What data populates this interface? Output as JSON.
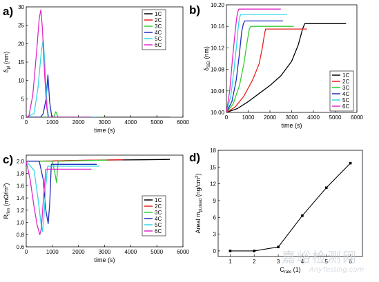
{
  "chart_data": [
    {
      "panel": "a)",
      "type": "line",
      "xlabel": "time (s)",
      "ylabel": "δpl (nm)",
      "ylabel_main": "δ",
      "ylabel_sub": "pl",
      "ylabel_rest": " (nm)",
      "xlim": [
        0,
        6000
      ],
      "ylim": [
        0,
        30
      ],
      "xticks": [
        0,
        1000,
        2000,
        3000,
        4000,
        5000,
        6000
      ],
      "yticks": [
        0,
        5,
        10,
        15,
        20,
        25,
        30
      ],
      "ytick_decimals": 0,
      "legend_placement": "top-right",
      "series": [
        {
          "name": "1C",
          "points": [
            [
              0,
              0
            ],
            [
              800,
              0
            ],
            [
              1200,
              0
            ],
            [
              3000,
              0
            ],
            [
              5500,
              0
            ]
          ]
        },
        {
          "name": "2C",
          "points": [
            [
              0,
              0
            ],
            [
              1200,
              0
            ],
            [
              1700,
              0
            ],
            [
              3000,
              0
            ]
          ]
        },
        {
          "name": "3C",
          "points": [
            [
              0,
              0
            ],
            [
              1050,
              0
            ],
            [
              1130,
              1.5
            ],
            [
              1220,
              0
            ],
            [
              3000,
              0
            ]
          ]
        },
        {
          "name": "4C",
          "points": [
            [
              0,
              0
            ],
            [
              550,
              0
            ],
            [
              650,
              1
            ],
            [
              760,
              5
            ],
            [
              830,
              11.5
            ],
            [
              900,
              4
            ],
            [
              980,
              0
            ],
            [
              2000,
              0
            ]
          ]
        },
        {
          "name": "5C",
          "points": [
            [
              0,
              0
            ],
            [
              300,
              1
            ],
            [
              450,
              8
            ],
            [
              580,
              18
            ],
            [
              650,
              21
            ],
            [
              720,
              14
            ],
            [
              800,
              3
            ],
            [
              860,
              0
            ],
            [
              2800,
              0
            ]
          ]
        },
        {
          "name": "6C",
          "points": [
            [
              0,
              0
            ],
            [
              100,
              0.3
            ],
            [
              250,
              6
            ],
            [
              400,
              18
            ],
            [
              500,
              27
            ],
            [
              560,
              29.2
            ],
            [
              620,
              24
            ],
            [
              700,
              12
            ],
            [
              780,
              3
            ],
            [
              840,
              0
            ],
            [
              2500,
              0
            ]
          ]
        }
      ]
    },
    {
      "panel": "b)",
      "type": "line",
      "xlabel": "time (s)",
      "ylabel": "δSEI (nm)",
      "ylabel_main": "δ",
      "ylabel_sub": "SEI",
      "ylabel_rest": " (nm)",
      "xlim": [
        0,
        6000
      ],
      "ylim": [
        10.0,
        10.2
      ],
      "xticks": [
        0,
        1000,
        2000,
        3000,
        4000,
        5000,
        6000
      ],
      "yticks": [
        10.0,
        10.04,
        10.08,
        10.12,
        10.16,
        10.2
      ],
      "ytick_decimals": 2,
      "legend_placement": "bottom-right",
      "series": [
        {
          "name": "1C",
          "points": [
            [
              0,
              10.0
            ],
            [
              500,
              10.007
            ],
            [
              1000,
              10.02
            ],
            [
              1500,
              10.035
            ],
            [
              2000,
              10.05
            ],
            [
              2500,
              10.068
            ],
            [
              3000,
              10.095
            ],
            [
              3300,
              10.125
            ],
            [
              3500,
              10.155
            ],
            [
              3600,
              10.165
            ],
            [
              5500,
              10.165
            ]
          ]
        },
        {
          "name": "2C",
          "points": [
            [
              0,
              10.0
            ],
            [
              400,
              10.01
            ],
            [
              800,
              10.03
            ],
            [
              1200,
              10.06
            ],
            [
              1500,
              10.09
            ],
            [
              1650,
              10.12
            ],
            [
              1750,
              10.145
            ],
            [
              1800,
              10.155
            ],
            [
              3700,
              10.155
            ]
          ]
        },
        {
          "name": "3C",
          "points": [
            [
              0,
              10.0
            ],
            [
              300,
              10.015
            ],
            [
              600,
              10.05
            ],
            [
              800,
              10.09
            ],
            [
              950,
              10.13
            ],
            [
              1050,
              10.155
            ],
            [
              1120,
              10.16
            ],
            [
              3100,
              10.16
            ]
          ]
        },
        {
          "name": "4C",
          "points": [
            [
              0,
              10.0
            ],
            [
              250,
              10.02
            ],
            [
              450,
              10.06
            ],
            [
              600,
              10.11
            ],
            [
              700,
              10.15
            ],
            [
              780,
              10.165
            ],
            [
              840,
              10.17
            ],
            [
              2600,
              10.17
            ]
          ]
        },
        {
          "name": "5C",
          "points": [
            [
              0,
              10.0
            ],
            [
              200,
              10.03
            ],
            [
              350,
              10.08
            ],
            [
              480,
              10.13
            ],
            [
              560,
              10.165
            ],
            [
              620,
              10.178
            ],
            [
              660,
              10.182
            ],
            [
              2800,
              10.182
            ]
          ]
        },
        {
          "name": "6C",
          "points": [
            [
              0,
              10.0
            ],
            [
              150,
              10.04
            ],
            [
              280,
              10.1
            ],
            [
              400,
              10.15
            ],
            [
              480,
              10.178
            ],
            [
              530,
              10.188
            ],
            [
              570,
              10.192
            ],
            [
              2500,
              10.192
            ]
          ]
        }
      ]
    },
    {
      "panel": "c)",
      "type": "line",
      "xlabel": "time (s)",
      "ylabel": "Rfilm (mΩ/m2)",
      "ylabel_main": "R",
      "ylabel_sub": "film",
      "ylabel_rest": " (mΩ/m",
      "ylabel_sup": "2",
      "ylabel_close": ")",
      "xlim": [
        0,
        6000
      ],
      "ylim": [
        0.6,
        2.1
      ],
      "xticks": [
        0,
        1000,
        2000,
        3000,
        4000,
        5000,
        6000
      ],
      "yticks": [
        0.6,
        0.8,
        1.0,
        1.2,
        1.4,
        1.6,
        1.8,
        2.0
      ],
      "ytick_decimals": 1,
      "legend_placement": "bottom-right",
      "series": [
        {
          "name": "1C",
          "points": [
            [
              0,
              2.0
            ],
            [
              800,
              2.0
            ],
            [
              1500,
              2.01
            ],
            [
              3000,
              2.02
            ],
            [
              4500,
              2.025
            ],
            [
              5500,
              2.03
            ]
          ]
        },
        {
          "name": "2C",
          "points": [
            [
              0,
              2.0
            ],
            [
              1000,
              2.005
            ],
            [
              2000,
              2.015
            ],
            [
              3700,
              2.025
            ]
          ]
        },
        {
          "name": "3C",
          "points": [
            [
              0,
              2.0
            ],
            [
              1000,
              2.0
            ],
            [
              1100,
              1.8
            ],
            [
              1160,
              1.65
            ],
            [
              1220,
              2.0
            ],
            [
              3100,
              2.02
            ]
          ]
        },
        {
          "name": "4C",
          "points": [
            [
              0,
              2.0
            ],
            [
              500,
              2.0
            ],
            [
              650,
              1.7
            ],
            [
              750,
              1.2
            ],
            [
              840,
              0.98
            ],
            [
              900,
              1.3
            ],
            [
              960,
              1.95
            ],
            [
              2700,
              1.95
            ]
          ]
        },
        {
          "name": "5C",
          "points": [
            [
              0,
              2.0
            ],
            [
              300,
              1.85
            ],
            [
              450,
              1.4
            ],
            [
              560,
              1.0
            ],
            [
              620,
              0.85
            ],
            [
              680,
              1.1
            ],
            [
              750,
              1.6
            ],
            [
              820,
              1.92
            ],
            [
              2800,
              1.92
            ]
          ]
        },
        {
          "name": "6C",
          "points": [
            [
              0,
              2.0
            ],
            [
              150,
              1.7
            ],
            [
              300,
              1.25
            ],
            [
              420,
              0.95
            ],
            [
              520,
              0.8
            ],
            [
              580,
              0.9
            ],
            [
              660,
              1.4
            ],
            [
              750,
              1.87
            ],
            [
              2500,
              1.87
            ]
          ]
        }
      ]
    },
    {
      "panel": "d)",
      "type": "line",
      "xlabel": "Crate (1)",
      "xlabel_main": "C",
      "xlabel_sub": "rate",
      "xlabel_rest": " (1)",
      "ylabel": "Areal mpl,dead (ng/cm2)",
      "ylabel_main": "Areal m",
      "ylabel_sub": "pl,dead",
      "ylabel_rest": " (ng/cm",
      "ylabel_sup": "2",
      "ylabel_close": ")",
      "xlim": [
        0.5,
        6.5
      ],
      "ylim": [
        -1,
        18
      ],
      "xticks": [
        1,
        2,
        3,
        4,
        5,
        6
      ],
      "yticks": [
        0,
        3,
        6,
        9,
        12,
        15,
        18
      ],
      "ytick_decimals": 0,
      "x": [
        1,
        2,
        3,
        4,
        5,
        6
      ],
      "values": [
        0.0,
        0.0,
        0.7,
        6.3,
        11.3,
        15.7
      ]
    }
  ],
  "legend_colors": {
    "1C": "#000000",
    "2C": "#e8201f",
    "3C": "#33cc33",
    "4C": "#1f2dbd",
    "5C": "#33d6e6",
    "6C": "#e025c8"
  },
  "watermark": {
    "main": "嘉峪检测网",
    "sub": "AnyTesting.com"
  }
}
